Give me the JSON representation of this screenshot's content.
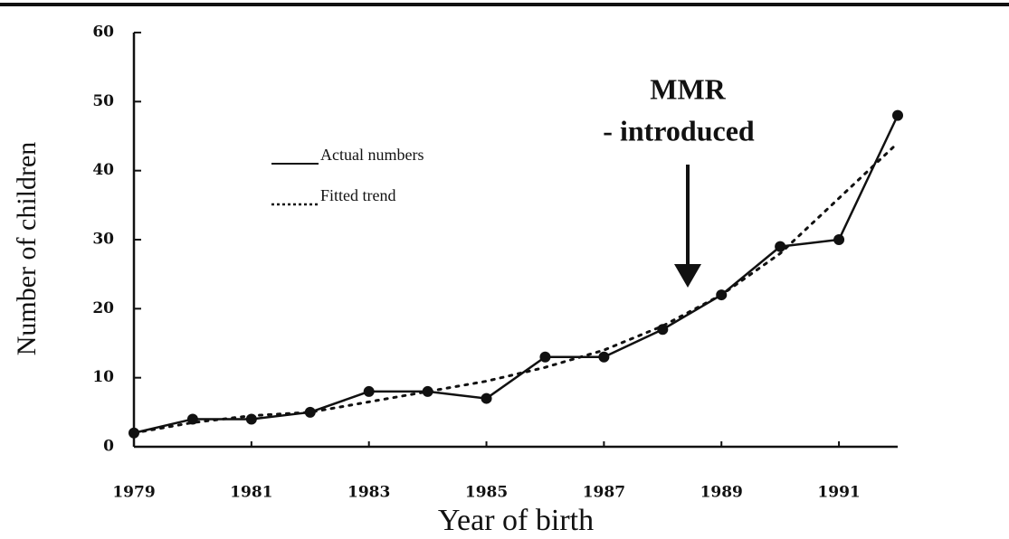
{
  "chart_data": {
    "type": "line",
    "x_label": "Year of birth",
    "y_label": "Number of children",
    "x": [
      1979,
      1980,
      1981,
      1982,
      1983,
      1984,
      1985,
      1986,
      1987,
      1988,
      1989,
      1990,
      1991,
      1992
    ],
    "series": [
      {
        "name": "Actual numbers",
        "color": "#111111",
        "line_style": "solid",
        "markers": true,
        "values": [
          2,
          4,
          4,
          5,
          8,
          8,
          7,
          13,
          13,
          17,
          22,
          29,
          30,
          48
        ]
      },
      {
        "name": "Fitted trend",
        "color": "#111111",
        "line_style": "dotted",
        "markers": false,
        "values": [
          2,
          3.5,
          4.5,
          5,
          6.5,
          8,
          9.5,
          11.5,
          14,
          17.5,
          22,
          28,
          36,
          44
        ]
      }
    ],
    "xlim": [
      1979,
      1992
    ],
    "xticks": [
      1979,
      1981,
      1983,
      1985,
      1987,
      1989,
      1991
    ],
    "ylim": [
      0,
      60
    ],
    "yticks": [
      0,
      10,
      20,
      30,
      40,
      50,
      60
    ],
    "annotations": [
      "MMR",
      "- introduced"
    ]
  }
}
